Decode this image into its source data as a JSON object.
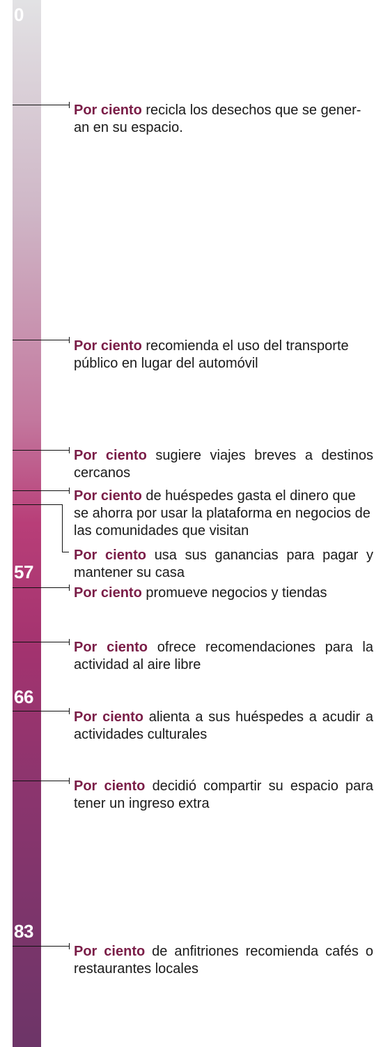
{
  "chart_data": {
    "type": "bar",
    "title": "",
    "xlabel": "",
    "ylabel": "",
    "scale_labels": [
      "0",
      "57",
      "66",
      "83"
    ],
    "lead_text": "Por ciento",
    "annotations": [
      {
        "text": "recicla los desechos que se gener-an en su espacio."
      },
      {
        "text": "recomienda el uso del transporte público en lugar del automóvil"
      },
      {
        "text": "sugiere viajes breves a destinos cercanos"
      },
      {
        "text": "de huéspedes gasta el dinero que se ahorra por usar la plataforma en negocios de las comunidades que visitan"
      },
      {
        "text": "usa sus ganancias para pagar y mantener su casa"
      },
      {
        "text": "promueve negocios y tiendas"
      },
      {
        "text": "ofrece recomendaciones para la actividad al aire libre"
      },
      {
        "text": "alienta a sus huéspedes a acudir a actividades culturales"
      },
      {
        "text": "decidió compartir su espacio para tener un ingreso extra"
      },
      {
        "text": "de anfitriones recomienda cafés o restaurantes locales"
      }
    ]
  }
}
